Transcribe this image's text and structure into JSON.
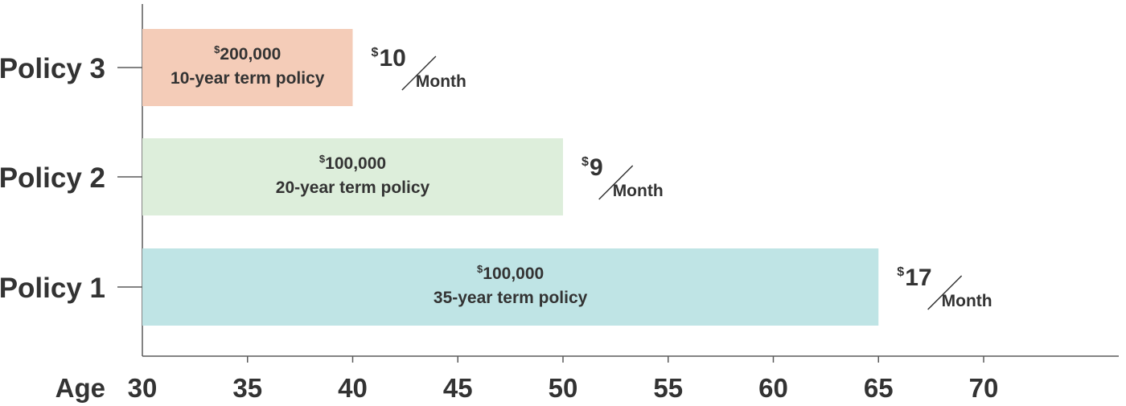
{
  "chart_data": {
    "type": "bar",
    "orientation": "horizontal",
    "xlabel": "Age",
    "xlim": [
      30,
      76.5
    ],
    "xticks": [
      30,
      35,
      40,
      45,
      50,
      55,
      60,
      65,
      70
    ],
    "categories": [
      "Policy 3",
      "Policy 2",
      "Policy 1"
    ],
    "bars": [
      {
        "category": "Policy 3",
        "start": 30,
        "end": 40,
        "currency": "$",
        "amount": "200,000",
        "term": "10-year term policy",
        "price": "10",
        "per": "Month",
        "color": "#f4ccb8"
      },
      {
        "category": "Policy 2",
        "start": 30,
        "end": 50,
        "currency": "$",
        "amount": "100,000",
        "term": "20-year term policy",
        "price": "9",
        "per": "Month",
        "color": "#ddeedb"
      },
      {
        "category": "Policy 1",
        "start": 30,
        "end": 65,
        "currency": "$",
        "amount": "100,000",
        "term": "35-year term policy",
        "price": "17",
        "per": "Month",
        "color": "#bfe4e5"
      }
    ]
  }
}
